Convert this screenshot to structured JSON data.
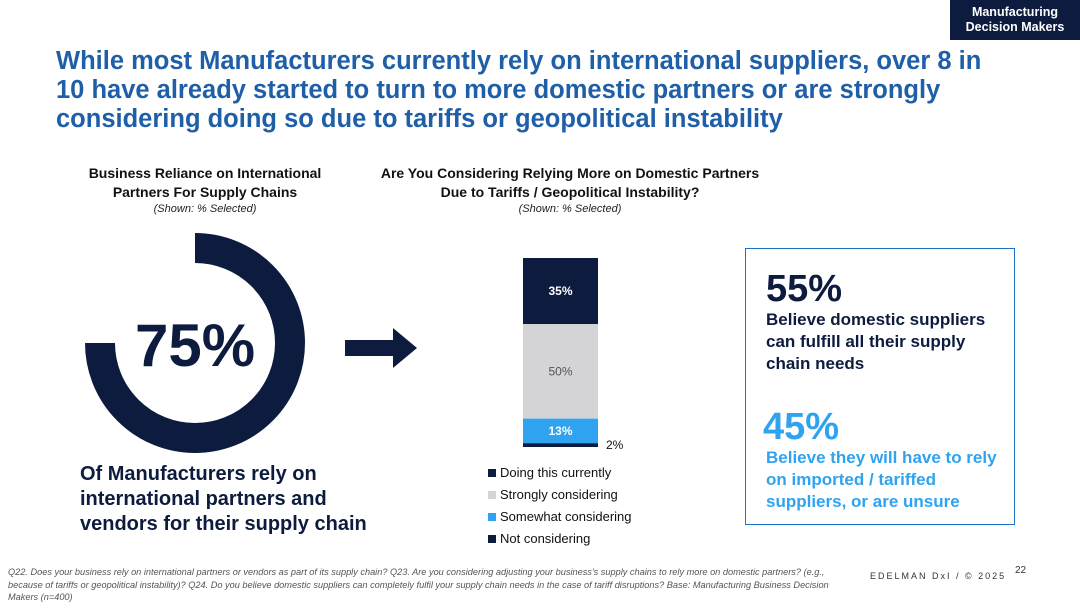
{
  "tag": {
    "line1": "Manufacturing",
    "line2": "Decision Makers"
  },
  "headline": "While most Manufacturers currently rely on international suppliers, over 8 in 10 have already started to turn to more domestic partners or are strongly considering doing so due to tariffs or geopolitical instability",
  "colors": {
    "navy": "#0d1b3e",
    "gray": "#d4d4d6",
    "light_blue": "#2fa3f0",
    "headline_blue": "#1f5fa8"
  },
  "chart_data": [
    {
      "type": "pie",
      "title": "Business Reliance on International Partners For Supply Chains",
      "subtitle": "(Shown: % Selected)",
      "values": [
        75,
        25
      ],
      "center_label": "75%",
      "caption": "Of Manufacturers rely on international partners and vendors for their supply chain"
    },
    {
      "type": "bar",
      "stacked": true,
      "title": "Are You Considering Relying More on Domestic Partners Due to Tariffs / Geopolitical Instability?",
      "subtitle": "(Shown: % Selected)",
      "series": [
        {
          "name": "Doing this currently",
          "value": 35,
          "label": "35%",
          "color": "#0d1b3e",
          "label_color": "#ffffff"
        },
        {
          "name": "Strongly considering",
          "value": 50,
          "label": "50%",
          "color": "#d4d4d6",
          "label_color": "#555555"
        },
        {
          "name": "Somewhat considering",
          "value": 13,
          "label": "13%",
          "color": "#2fa3f0",
          "label_color": "#ffffff"
        },
        {
          "name": "Not considering",
          "value": 2,
          "label": "2%",
          "color": "#0d1b3e",
          "label_color": "#111111"
        }
      ]
    }
  ],
  "callout": {
    "stat1": "55%",
    "text1": "Believe domestic suppliers can fulfill all their supply chain needs",
    "stat2": "45%",
    "text2": "Believe they will have to rely on imported / tariffed suppliers, or are unsure"
  },
  "footnote": "Q22. Does your business rely on international partners or vendors as part of its supply chain? Q23. Are you considering adjusting your business's supply chains to rely more on domestic partners? (e.g., because of tariffs or geopolitical instability)? Q24. Do you believe domestic suppliers can completely fulfil your supply chain needs in the case of tariff disruptions? Base: Manufacturing Business Decision Makers  (n=400)",
  "brand": "EDELMAN DxI / © 2025",
  "page_number": "22"
}
